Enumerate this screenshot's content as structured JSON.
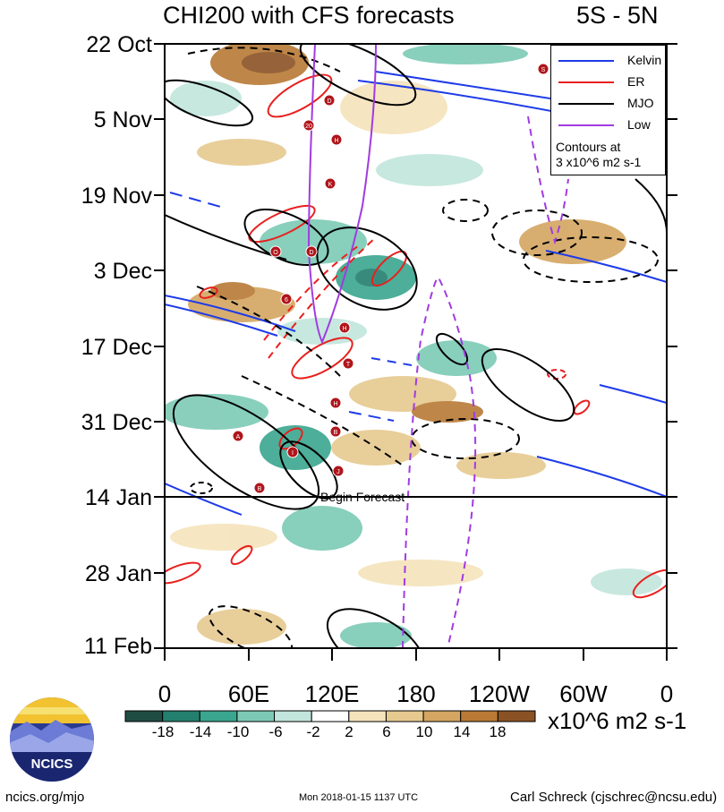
{
  "header": {
    "title": "CHI200 with CFS forecasts",
    "region": "5S - 5N"
  },
  "chart_data": {
    "type": "heatmap",
    "title": "CHI200 with CFS forecasts",
    "subtitle": "5S - 5N",
    "x_ticks": [
      "0",
      "60E",
      "120E",
      "180",
      "120W",
      "60W",
      "0"
    ],
    "y_ticks": [
      "22 Oct",
      "5 Nov",
      "19 Nov",
      "3 Dec",
      "17 Dec",
      "31 Dec",
      "14 Jan",
      "28 Jan",
      "11 Feb"
    ],
    "colorbar": {
      "labels": [
        "-18",
        "-14",
        "-10",
        "-6",
        "-2",
        "2",
        "6",
        "10",
        "14",
        "18"
      ],
      "units": "x10^6 m2 s-1",
      "colors": [
        "#1f4d44",
        "#237f6e",
        "#3aa68f",
        "#7ccab5",
        "#c2e6dc",
        "#ffffff",
        "#f5e3bb",
        "#e6c98f",
        "#d4a661",
        "#b87a35",
        "#8a5224"
      ]
    },
    "legend": {
      "items": [
        {
          "label": "Kelvin",
          "color": "#1e3be8"
        },
        {
          "label": "ER",
          "color": "#e8201e"
        },
        {
          "label": "MJO",
          "color": "#000000"
        },
        {
          "label": "Low",
          "color": "#a13be0"
        }
      ],
      "note": [
        "Contours at",
        "3 x10^6 m2 s-1"
      ],
      "position": "top-right"
    },
    "forecast_line_label": "Begin Forecast",
    "storm_markers": [
      "S",
      "D",
      "20",
      "H",
      "K",
      "O",
      "D",
      "6",
      "H",
      "T",
      "H",
      "B",
      "A",
      "I",
      "J",
      "B"
    ]
  },
  "footer": {
    "site": "ncics.org/mjo",
    "timestamp": "Mon 2018-01-15 1137 UTC",
    "author": "Carl Schreck (cjschrec@ncsu.edu)"
  },
  "logo": {
    "text": "NCICS"
  }
}
